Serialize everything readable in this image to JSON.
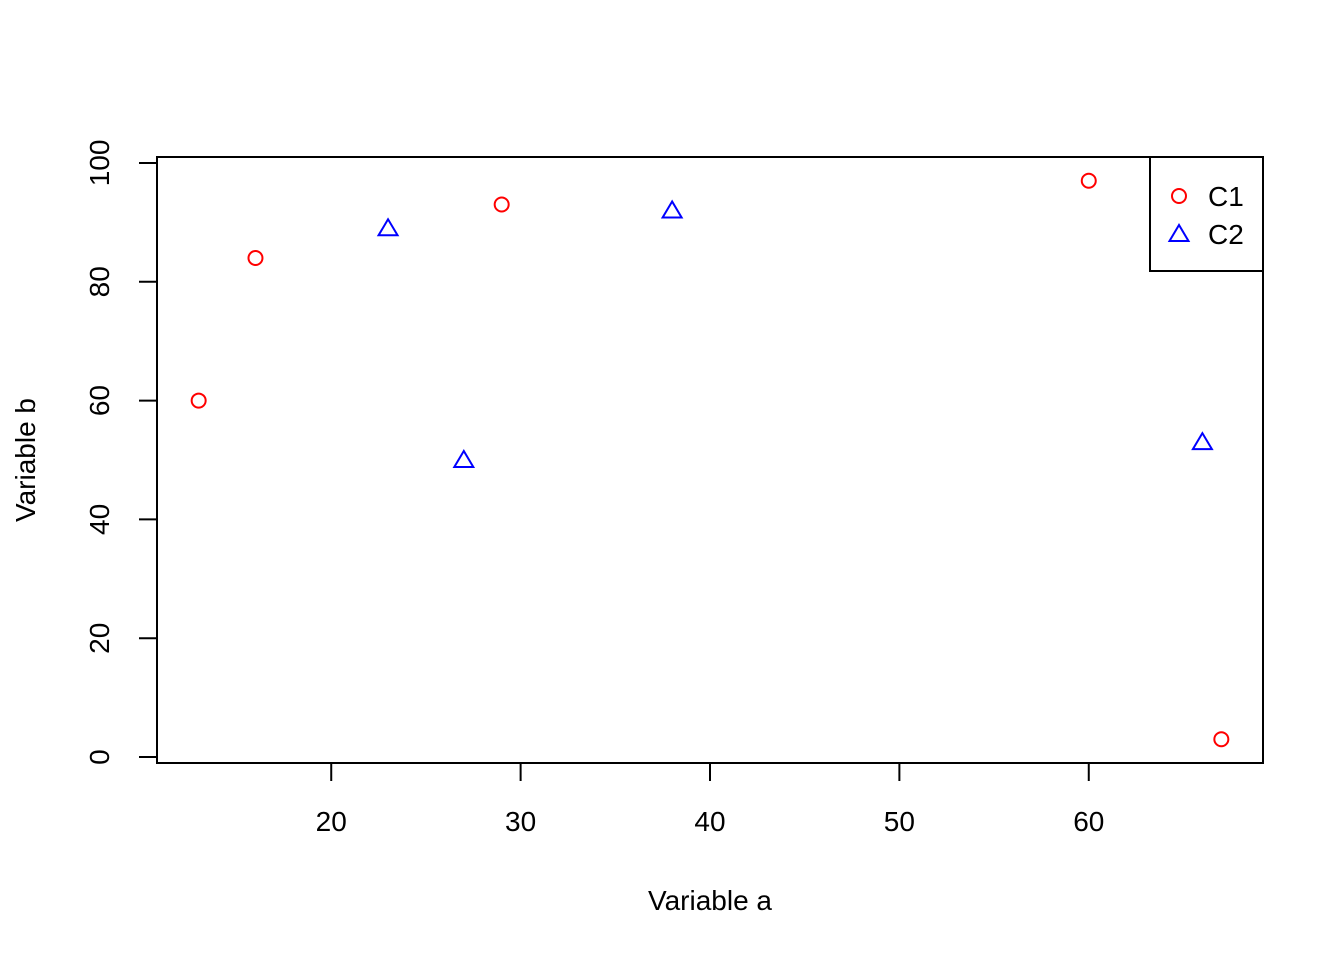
{
  "chart_data": {
    "type": "scatter",
    "title": "",
    "xlabel": "Variable a",
    "ylabel": "Variable b",
    "xlim": [
      10.8,
      69.2
    ],
    "ylim": [
      -1,
      101
    ],
    "x_ticks": [
      20,
      30,
      40,
      50,
      60
    ],
    "y_ticks": [
      0,
      20,
      40,
      60,
      80,
      100
    ],
    "grid": false,
    "legend_position": "top-right",
    "series": [
      {
        "name": "C1",
        "marker": "circle",
        "color": "#ff0000",
        "points": [
          {
            "x": 13,
            "y": 60
          },
          {
            "x": 16,
            "y": 84
          },
          {
            "x": 29,
            "y": 93
          },
          {
            "x": 60,
            "y": 97
          },
          {
            "x": 67,
            "y": 3
          }
        ]
      },
      {
        "name": "C2",
        "marker": "triangle",
        "color": "#0000ff",
        "points": [
          {
            "x": 23,
            "y": 89
          },
          {
            "x": 27,
            "y": 50
          },
          {
            "x": 38,
            "y": 92
          },
          {
            "x": 66,
            "y": 53
          }
        ]
      }
    ]
  }
}
